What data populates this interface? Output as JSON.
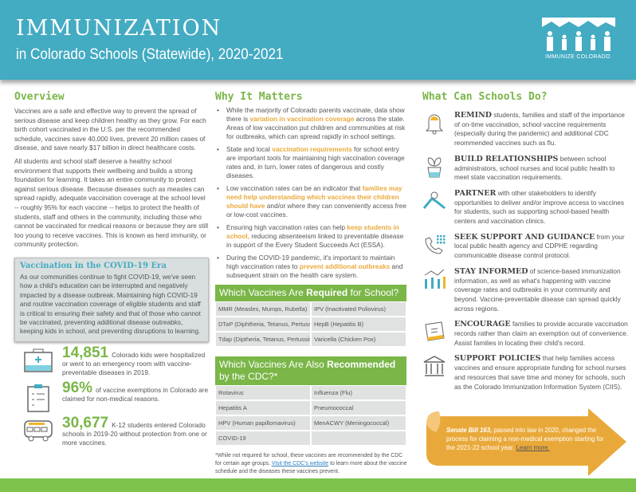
{
  "header": {
    "title": "IMMUNIZATION",
    "subtitle": "in Colorado Schools (Statewide), 2020-2021",
    "logo_text": "IMMUNIZE COLORADO"
  },
  "overview": {
    "heading": "Overview",
    "paragraphs": [
      "Vaccines are a safe and effective way to prevent the spread of serious disease and keep children healthy as they grow. For each birth cohort vaccinated in the U.S. per the recommended schedule, vaccines save 40,000 lives, prevent 20 million cases of disease, and save nearly $17 billion in direct healthcare costs.",
      "All students and school staff deserve a healthy school environment that supports their wellbeing and builds a strong foundation for learning. It takes an entire community to protect against serious disease. Because diseases such as measles can spread rapidly, adequate vaccination coverage at the school level -- roughly 95% for each vaccine -- helps to protect the health of students, staff and others in the community, including those who cannot be vaccinated for medical reasons or because they are still too young to receive vaccines. This is known as herd immunity, or community protection."
    ]
  },
  "covid": {
    "heading": "Vaccination in the COVID-19 Era",
    "text": "As our communities continue to fight COVID-19, we've seen how a child's education can be interrupted and negatively impacted by a disease outbreak. Maintaining high COVID-19 and routine vaccination coverage of eligible students and staff is critical to ensuring their safety and that of those who cannot be vaccinated, preventing additional disease outreabks, keeping kids in school, and preventing disruptions to learning."
  },
  "stats": [
    {
      "icon": "first-aid-kit-icon",
      "value": "14,851",
      "text": "Colorado kids were hospitalized or went to an emergency room with vaccine-preventable diseases in 2019."
    },
    {
      "icon": "clipboard-checklist-icon",
      "value": "96%",
      "text": "of vaccine exemptions in Colorado are claimed for non-medical reasons."
    },
    {
      "icon": "school-bus-icon",
      "value": "30,677",
      "text": "K-12 students entered Colorado schools in 2019-20 without protection from one or more vaccines."
    }
  ],
  "why": {
    "heading": "Why It Matters",
    "bullets": [
      {
        "pre": "While the marjority of Colorado parents vaccinate, data show there is ",
        "hl": "variation in vaccination coverage",
        "post": " across the state. Areas of low vaccination put children and communities at risk for outbreaks, which can spread rapidly in school settings."
      },
      {
        "pre": "State and local ",
        "hl": "vaccination requirements",
        "post": " for school entry are important tools for maintaining high vaccination coverage rates and, in turn, lower rates of dangerous and costly diseases."
      },
      {
        "pre": "Low vaccination rates can be an indicator that ",
        "hl": "families may need help understanding which vaccines their children should have",
        "post": " and/or where they can conveniently access free or low-cost vaccines."
      },
      {
        "pre": "Ensuring high vaccination rates can help ",
        "hl": "keep students in school,",
        "post": " reducing absenteeism linked to preventable disease in support of the Every Student Succeeds Act (ESSA)."
      },
      {
        "pre": "During the COVID-19 pandemic, it's important to maintain high vaccination rates to ",
        "hl": "prevent additional outbreaks",
        "post": " and subsequent strain on the health care system."
      }
    ]
  },
  "required": {
    "heading_pre": "Which Vaccines Are ",
    "heading_bold": "Required",
    "heading_post": " for School?",
    "rows": [
      [
        "MMR (Measles, Mumps, Rubella)",
        "IPV (Inactivated Poliovirus)"
      ],
      [
        "DTaP (Diphtheria, Tetanus, Pertussis)",
        "HepB (Hepatitis B)"
      ],
      [
        "Tdap (Diptheria, Tetanus, Pertussis)",
        "Varicella (Chicken Pox)"
      ]
    ]
  },
  "recommended": {
    "heading_pre": "Which Vaccines Are Also ",
    "heading_bold": "Recommended",
    "heading_post": " by the CDC?*",
    "rows": [
      [
        "Rotavirus",
        "Influenza (Flu)"
      ],
      [
        "Hepatitis A",
        "Pneumococcal"
      ],
      [
        "HPV (Human papillomavirus)",
        "MenACWY (Meningococcal)"
      ],
      [
        "COVID-19",
        ""
      ]
    ]
  },
  "note": {
    "pre": "*While not required for school, these vaccines are recommended by the CDC for certain age groups. ",
    "link": "Visit the CDC's website",
    "post": " to learn more about the vaccine schedule and the diseases these vaccines prevent."
  },
  "schools": {
    "heading": "What Can Schools Do?",
    "actions": [
      {
        "icon": "bell-icon",
        "title": "REMIND",
        "text": " students, families and staff of the importance of on-time vaccination, school vaccine requirements (especially during the pandemic) and additional CDC reommended vaccines such as flu."
      },
      {
        "icon": "plant-icon",
        "title": "BUILD RELATIONSHIPS",
        "text": " between school administrators, school nurses and local public health to meet state vaccination requirements."
      },
      {
        "icon": "handshake-icon",
        "title": "PARTNER",
        "text": "  with other stakeholders to identify opportunities to deliver and/or improve access to vaccines for students, such as supporting school-based health centers and vaccination clinics."
      },
      {
        "icon": "phone-icon",
        "title": "SEEK SUPPORT AND GUIDANCE",
        "text": " from your local public health agency and CDPHE regarding communicable disease control protocol."
      },
      {
        "icon": "chart-icon",
        "title": "STAY INFORMED",
        "text": " of science-based immunization information, as well as what's happening with vaccine coverage rates and outbreaks in your community and beyond. Vaccine-preventable disease can spread quickly across regions."
      },
      {
        "icon": "records-icon",
        "title": "ENCOURAGE",
        "text": " families to provide accurate vaccination records rather than claim an exemption out of convenience. Assist families in locating their child's record."
      },
      {
        "icon": "capitol-building-icon",
        "title": "SUPPORT POLICIES",
        "text": " that help families access vaccines and ensure appropriate funding for school nurses and resources that save time and money for schools, such as the Colorado Immunization Information System (CIIS)."
      }
    ]
  },
  "callout": {
    "bold": "Senate Bill 163,",
    "text": " passed into law in 2020, changed the process for claiming a non-medical exemption starting for the 2021-22 school year. ",
    "link": "Learn more."
  },
  "colors": {
    "teal": "#43abc2",
    "green": "#7ab648",
    "gold": "#e9a93a"
  }
}
